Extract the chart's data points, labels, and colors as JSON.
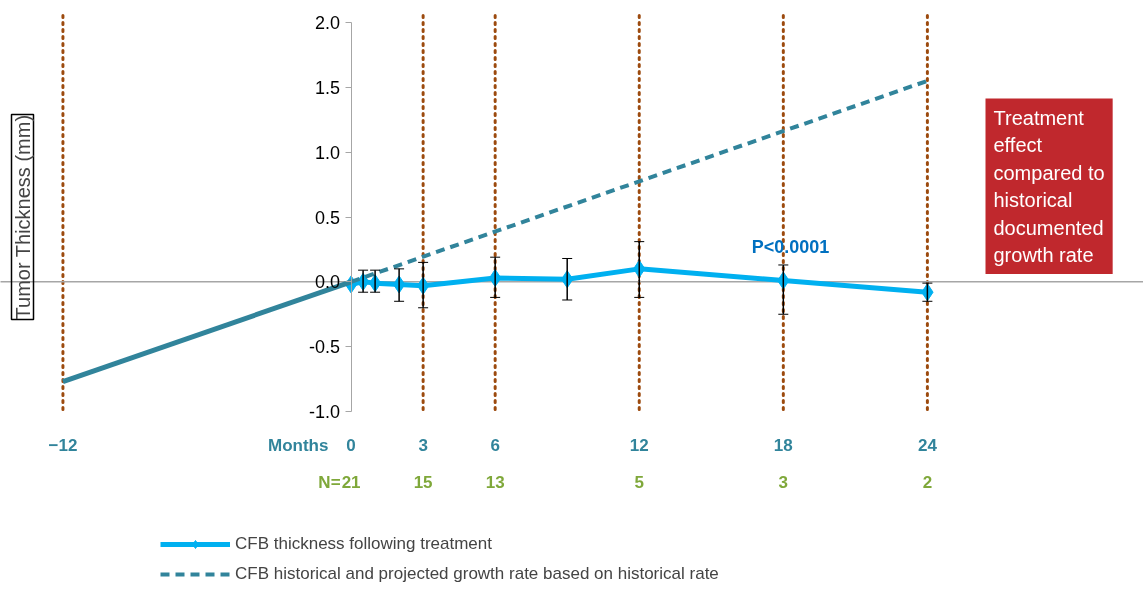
{
  "chart_data": {
    "type": "line",
    "ylabel": "Tumor Thickness (mm)",
    "xlabel": "Months",
    "xlim": [
      -14.6,
      33
    ],
    "ylim": [
      -1,
      2
    ],
    "xticks": [
      -12,
      0,
      3,
      6,
      12,
      18,
      24
    ],
    "yticks": [
      {
        "value": -1,
        "label": "-1.0"
      },
      {
        "value": -0.5,
        "label": "-0.5"
      },
      {
        "value": 0,
        "label": "0.0"
      },
      {
        "value": 0.5,
        "label": "0.5"
      },
      {
        "value": 1,
        "label": "1.0"
      },
      {
        "value": 1.5,
        "label": "1.5"
      },
      {
        "value": 2,
        "label": "2.0"
      }
    ],
    "grid": false,
    "legend": "bottom",
    "series": [
      {
        "name": "CFB thickness following treatment",
        "color": "#00b0f0",
        "marker": "diamond",
        "line_style": "solid",
        "x": [
          0,
          0.5,
          1,
          2,
          3,
          6,
          9,
          12,
          18,
          24
        ],
        "values": [
          -0.02,
          0.0,
          -0.01,
          -0.02,
          -0.03,
          0.03,
          0.02,
          0.1,
          0.01,
          -0.08
        ],
        "errors": [
          null,
          [
            -0.08,
            0.09
          ],
          [
            -0.08,
            0.09
          ],
          [
            -0.15,
            0.1
          ],
          [
            -0.2,
            0.15
          ],
          [
            -0.12,
            0.19
          ],
          [
            -0.14,
            0.18
          ],
          [
            -0.12,
            0.31
          ],
          [
            -0.25,
            0.13
          ],
          [
            -0.15,
            -0.01
          ]
        ]
      },
      {
        "color": "#31849b",
        "marker": "none",
        "line_style": "solid",
        "x": [
          -12,
          0
        ],
        "values": [
          -0.77,
          0
        ]
      },
      {
        "name": "CFB historical and projected growth rate based on historical rate",
        "color": "#31849b",
        "marker": "none",
        "line_style": "dashed",
        "x": [
          0,
          24
        ],
        "values": [
          0,
          1.55
        ]
      }
    ],
    "ref_lines": [
      {
        "axis": "y",
        "value": 0,
        "color": "#a6a6a6",
        "line_style": "solid"
      },
      {
        "axis": "x",
        "value": -12,
        "color": "#9c4a0e",
        "line_style": "dotted"
      },
      {
        "axis": "x",
        "value": 3,
        "color": "#9c4a0e",
        "line_style": "dotted"
      },
      {
        "axis": "x",
        "value": 6,
        "color": "#9c4a0e",
        "line_style": "dotted"
      },
      {
        "axis": "x",
        "value": 12,
        "color": "#9c4a0e",
        "line_style": "dotted"
      },
      {
        "axis": "x",
        "value": 18,
        "color": "#9c4a0e",
        "line_style": "dotted"
      },
      {
        "axis": "x",
        "value": 24,
        "color": "#9c4a0e",
        "line_style": "dotted"
      }
    ],
    "annotations": [
      "P<0.0001",
      "Treatment effect compared to historical documented growth rate",
      "N=",
      "21",
      "15",
      "13",
      "5",
      "3",
      "2"
    ]
  }
}
